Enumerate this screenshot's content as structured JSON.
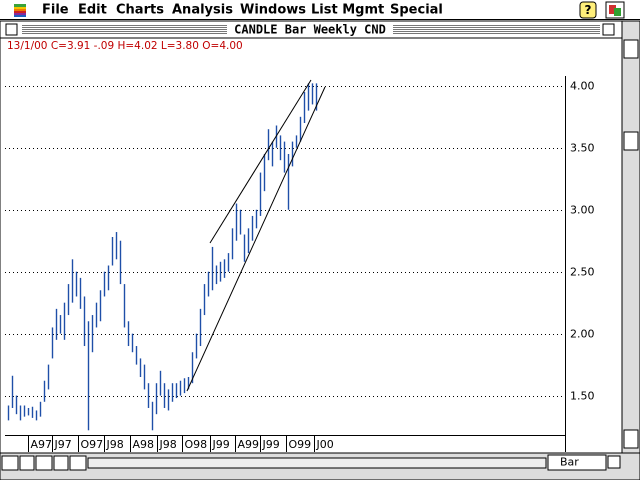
{
  "menus": [
    "File",
    "Edit",
    "Charts",
    "Analysis",
    "Windows",
    "List Mgmt",
    "Special"
  ],
  "window": {
    "title": "CANDLE Bar Weekly CND"
  },
  "status": "13/1/00 C=3.91 -.09 H=4.02 L=3.80 O=4.00",
  "chart_style": "Bar",
  "chart_data": {
    "type": "hilo",
    "color": "#1f4fa8",
    "grid": true,
    "x": [
      0,
      1,
      2,
      3,
      4,
      5,
      6,
      7,
      8,
      9,
      10,
      11,
      12,
      13,
      14,
      15,
      16,
      17,
      18,
      19,
      20,
      21,
      22,
      23,
      24,
      25,
      26,
      27,
      28,
      29,
      30,
      31,
      32,
      33,
      34,
      35,
      36,
      37,
      38,
      39,
      40,
      41,
      42,
      43,
      44,
      45,
      46,
      47,
      48,
      49,
      50,
      51,
      52,
      53,
      54,
      55,
      56,
      57,
      58,
      59,
      60,
      61,
      62,
      63,
      64,
      65,
      66,
      67,
      68,
      69,
      70,
      71,
      72,
      73,
      74,
      75,
      76,
      77
    ],
    "high": [
      1.42,
      1.66,
      1.5,
      1.42,
      1.42,
      1.4,
      1.41,
      1.38,
      1.45,
      1.62,
      1.75,
      2.05,
      2.2,
      2.15,
      2.25,
      2.4,
      2.6,
      2.5,
      2.45,
      2.3,
      2.1,
      2.15,
      2.25,
      2.35,
      2.5,
      2.55,
      2.78,
      2.82,
      2.75,
      2.4,
      2.1,
      2.0,
      1.9,
      1.8,
      1.75,
      1.6,
      1.45,
      1.6,
      1.7,
      1.6,
      1.55,
      1.6,
      1.6,
      1.62,
      1.64,
      1.65,
      1.85,
      2.0,
      2.2,
      2.4,
      2.5,
      2.7,
      2.55,
      2.58,
      2.6,
      2.65,
      2.85,
      3.05,
      3.0,
      2.8,
      2.85,
      2.95,
      3.0,
      3.3,
      3.45,
      3.65,
      3.55,
      3.68,
      3.6,
      3.55,
      3.45,
      3.55,
      3.6,
      3.75,
      3.95,
      4.02,
      4.02,
      4.02
    ],
    "low": [
      1.3,
      1.4,
      1.35,
      1.3,
      1.33,
      1.34,
      1.32,
      1.3,
      1.33,
      1.45,
      1.55,
      1.8,
      1.95,
      2.0,
      1.95,
      2.15,
      2.25,
      2.3,
      2.2,
      1.9,
      1.22,
      1.85,
      2.05,
      2.1,
      2.3,
      2.35,
      2.55,
      2.6,
      2.4,
      2.05,
      1.9,
      1.85,
      1.75,
      1.65,
      1.55,
      1.4,
      1.22,
      1.35,
      1.5,
      1.4,
      1.38,
      1.45,
      1.48,
      1.5,
      1.52,
      1.55,
      1.6,
      1.8,
      1.9,
      2.15,
      2.3,
      2.35,
      2.4,
      2.42,
      2.45,
      2.5,
      2.6,
      2.75,
      2.8,
      2.58,
      2.65,
      2.75,
      2.85,
      2.95,
      3.15,
      3.4,
      3.35,
      3.5,
      3.4,
      3.3,
      3.0,
      3.35,
      3.5,
      3.55,
      3.7,
      3.8,
      3.85,
      3.8
    ],
    "xlim": [
      -0.75,
      139.25
    ],
    "xticks": [
      {
        "value": 5,
        "label": "A97"
      },
      {
        "value": 11,
        "label": "J97"
      },
      {
        "value": 17.5,
        "label": "O97"
      },
      {
        "value": 24,
        "label": "J98"
      },
      {
        "value": 30.5,
        "label": "A98"
      },
      {
        "value": 37.25,
        "label": "J98"
      },
      {
        "value": 43.5,
        "label": "O98"
      },
      {
        "value": 50.5,
        "label": "J99"
      },
      {
        "value": 56.75,
        "label": "A99"
      },
      {
        "value": 63,
        "label": "J99"
      },
      {
        "value": 69.5,
        "label": "O99"
      },
      {
        "value": 76.5,
        "label": "J00"
      }
    ],
    "ylim": [
      1.19,
      4.37
    ],
    "yticks": [
      {
        "value": 1.5,
        "label": "1.50"
      },
      {
        "value": 2,
        "label": "2.00"
      },
      {
        "value": 2.5,
        "label": "2.50"
      },
      {
        "value": 3,
        "label": "3.00"
      },
      {
        "value": 3.5,
        "label": "3.50"
      },
      {
        "value": 4,
        "label": "4.00"
      }
    ]
  }
}
